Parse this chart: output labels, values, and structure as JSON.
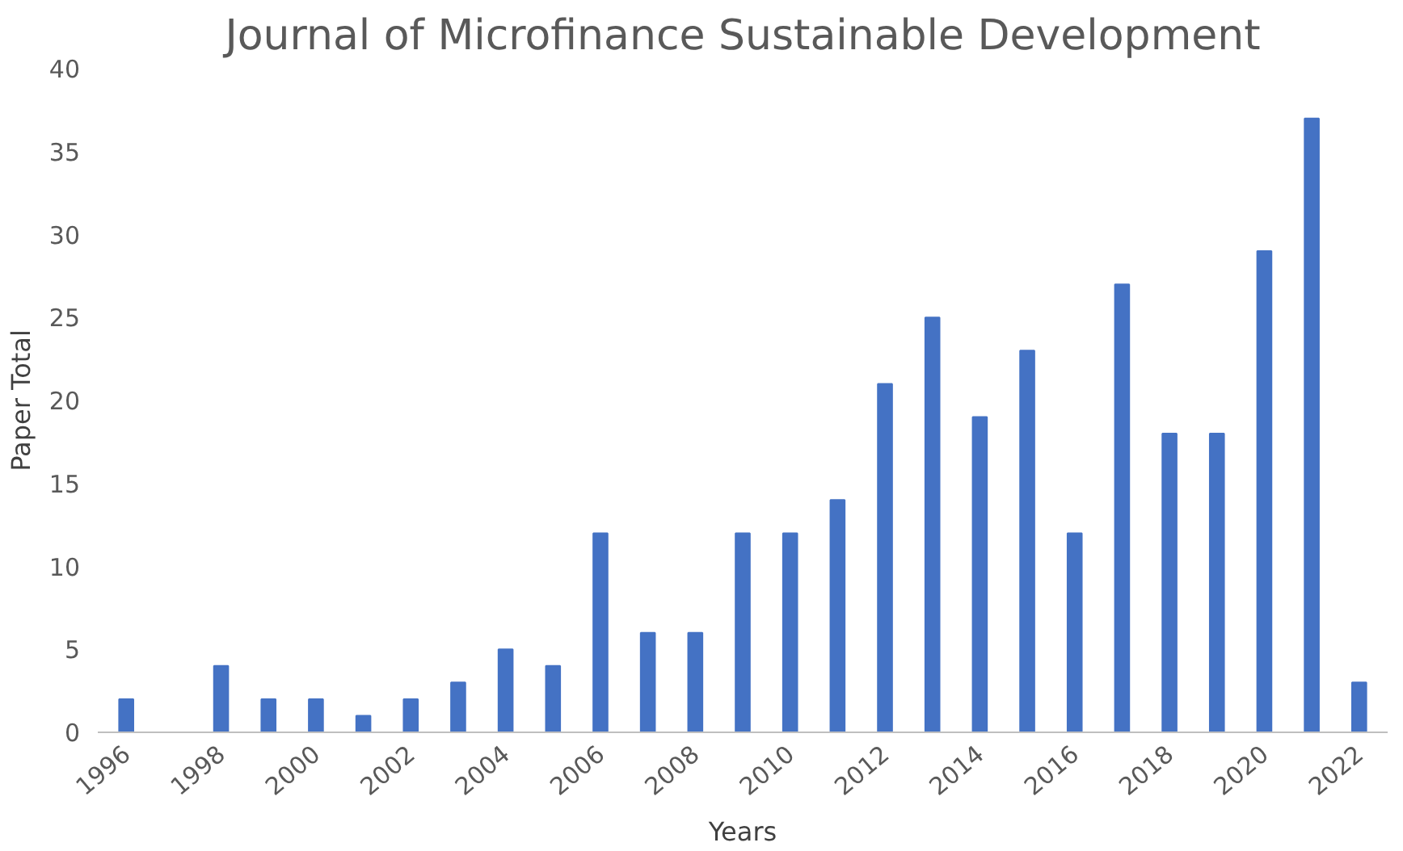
{
  "chart_data": {
    "type": "bar",
    "title": "Journal of Microfinance Sustainable Development",
    "xlabel": "Years",
    "ylabel": "Paper Total",
    "categories": [
      "1996",
      null,
      "1998",
      null,
      "2000",
      null,
      "2002",
      null,
      "2004",
      null,
      "2006",
      null,
      "2008",
      null,
      "2010",
      null,
      "2012",
      null,
      "2014",
      null,
      "2016",
      null,
      "2018",
      null,
      "2020",
      null,
      "2022"
    ],
    "values": [
      2,
      0,
      4,
      2,
      2,
      1,
      2,
      3,
      5,
      4,
      12,
      6,
      6,
      12,
      12,
      14,
      21,
      25,
      19,
      23,
      12,
      27,
      18,
      18,
      29,
      37,
      3
    ],
    "color": "#4472c4",
    "ylim": [
      0,
      40
    ],
    "yticks": [
      0,
      5,
      10,
      15,
      20,
      25,
      30,
      35,
      40
    ],
    "grid": false
  }
}
